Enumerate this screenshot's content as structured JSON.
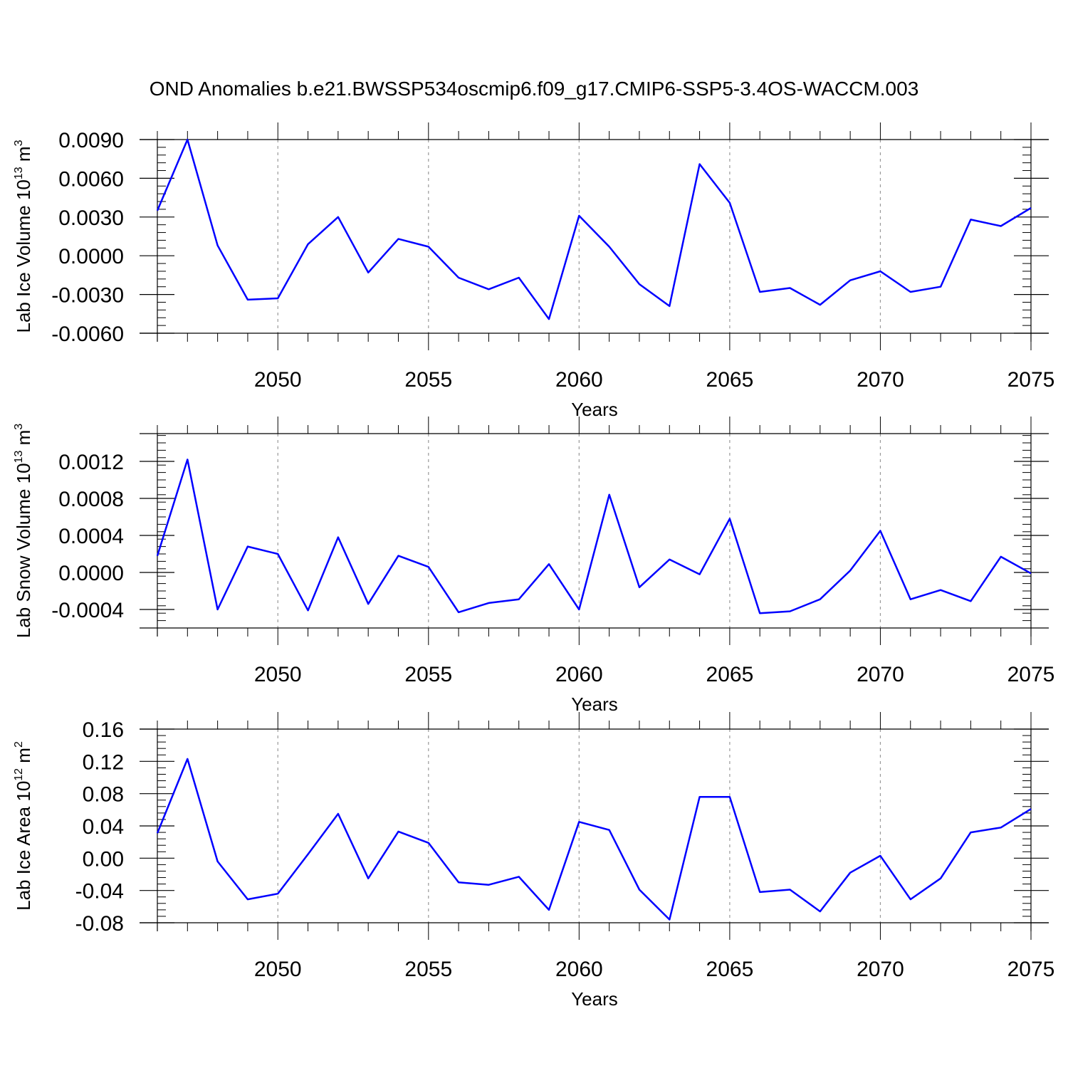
{
  "title": "OND Anomalies b.e21.BWSSP534oscmip6.f09_g17.CMIP6-SSP5-3.4OS-WACCM.003",
  "chart_data": [
    {
      "type": "line",
      "ylabel": "Lab Ice Volume 10",
      "ylabel_exp": "13",
      "ylabel_unit": " m",
      "ylabel_unit_exp": "3",
      "xlabel": "Years",
      "xlim": [
        2046,
        2075
      ],
      "ylim": [
        -0.006,
        0.009
      ],
      "yticks": [
        -0.006,
        -0.003,
        0.0,
        0.003,
        0.006,
        0.009
      ],
      "ytick_labels": [
        "-0.0060",
        "-0.0030",
        "0.0000",
        "0.0030",
        "0.0060",
        "0.0090"
      ],
      "xticks": [
        2050,
        2055,
        2060,
        2065,
        2070,
        2075
      ],
      "xtick_labels": [
        "2050",
        "2055",
        "2060",
        "2065",
        "2070",
        "2075"
      ],
      "grid": "vertical-dashed",
      "x": [
        2046,
        2047,
        2048,
        2049,
        2050,
        2051,
        2052,
        2053,
        2054,
        2055,
        2056,
        2057,
        2058,
        2059,
        2060,
        2061,
        2062,
        2063,
        2064,
        2065,
        2066,
        2067,
        2068,
        2069,
        2070,
        2071,
        2072,
        2073,
        2074,
        2075
      ],
      "series": [
        {
          "color": "#0000ff",
          "values": [
            0.0035,
            0.009,
            0.0008,
            -0.0034,
            -0.0033,
            0.0009,
            0.003,
            -0.0013,
            0.0013,
            0.0007,
            -0.0017,
            -0.0026,
            -0.0017,
            -0.0049,
            0.0031,
            0.0007,
            -0.0022,
            -0.0039,
            0.0071,
            0.0041,
            -0.0028,
            -0.0025,
            -0.0038,
            -0.0019,
            -0.0012,
            -0.0028,
            -0.0024,
            0.0028,
            0.0023,
            0.0037
          ]
        }
      ]
    },
    {
      "type": "line",
      "ylabel": "Lab Snow Volume 10",
      "ylabel_exp": "13",
      "ylabel_unit": " m",
      "ylabel_unit_exp": "3",
      "xlabel": "Years",
      "xlim": [
        2046,
        2075
      ],
      "ylim": [
        -0.0006,
        0.0015
      ],
      "yticks": [
        -0.0004,
        0.0,
        0.0004,
        0.0008,
        0.0012
      ],
      "ytick_labels": [
        "-0.0004",
        "0.0000",
        "0.0004",
        "0.0008",
        "0.0012"
      ],
      "xticks": [
        2050,
        2055,
        2060,
        2065,
        2070,
        2075
      ],
      "xtick_labels": [
        "2050",
        "2055",
        "2060",
        "2065",
        "2070",
        "2075"
      ],
      "grid": "vertical-dashed",
      "x": [
        2046,
        2047,
        2048,
        2049,
        2050,
        2051,
        2052,
        2053,
        2054,
        2055,
        2056,
        2057,
        2058,
        2059,
        2060,
        2061,
        2062,
        2063,
        2064,
        2065,
        2066,
        2067,
        2068,
        2069,
        2070,
        2071,
        2072,
        2073,
        2074,
        2075
      ],
      "series": [
        {
          "color": "#0000ff",
          "values": [
            0.00018,
            0.00122,
            -0.0004,
            0.00028,
            0.0002,
            -0.00041,
            0.00038,
            -0.00034,
            0.00018,
            6e-05,
            -0.00043,
            -0.00033,
            -0.00029,
            9e-05,
            -0.0004,
            0.00084,
            -0.00016,
            0.00014,
            -2e-05,
            0.00058,
            -0.00044,
            -0.00042,
            -0.00029,
            2e-05,
            0.00045,
            -0.00029,
            -0.00019,
            -0.00031,
            0.00017,
            -1e-05
          ]
        }
      ]
    },
    {
      "type": "line",
      "ylabel": "Lab Ice Area 10",
      "ylabel_exp": "12",
      "ylabel_unit": " m",
      "ylabel_unit_exp": "2",
      "xlabel": "Years",
      "xlim": [
        2046,
        2075
      ],
      "ylim": [
        -0.08,
        0.16
      ],
      "yticks": [
        -0.08,
        -0.04,
        0.0,
        0.04,
        0.08,
        0.12,
        0.16
      ],
      "ytick_labels": [
        "-0.08",
        "-0.04",
        "0.00",
        "0.04",
        "0.08",
        "0.12",
        "0.16"
      ],
      "xticks": [
        2050,
        2055,
        2060,
        2065,
        2070,
        2075
      ],
      "xtick_labels": [
        "2050",
        "2055",
        "2060",
        "2065",
        "2070",
        "2075"
      ],
      "grid": "vertical-dashed",
      "x": [
        2046,
        2047,
        2048,
        2049,
        2050,
        2051,
        2052,
        2053,
        2054,
        2055,
        2056,
        2057,
        2058,
        2059,
        2060,
        2061,
        2062,
        2063,
        2064,
        2065,
        2066,
        2067,
        2068,
        2069,
        2070,
        2071,
        2072,
        2073,
        2074,
        2075
      ],
      "series": [
        {
          "color": "#0000ff",
          "values": [
            0.031,
            0.123,
            -0.004,
            -0.051,
            -0.044,
            0.005,
            0.055,
            -0.025,
            0.033,
            0.019,
            -0.03,
            -0.033,
            -0.023,
            -0.064,
            0.045,
            0.035,
            -0.039,
            -0.076,
            0.076,
            0.076,
            -0.042,
            -0.039,
            -0.066,
            -0.018,
            0.003,
            -0.051,
            -0.025,
            0.032,
            0.038,
            0.061
          ]
        }
      ]
    }
  ]
}
